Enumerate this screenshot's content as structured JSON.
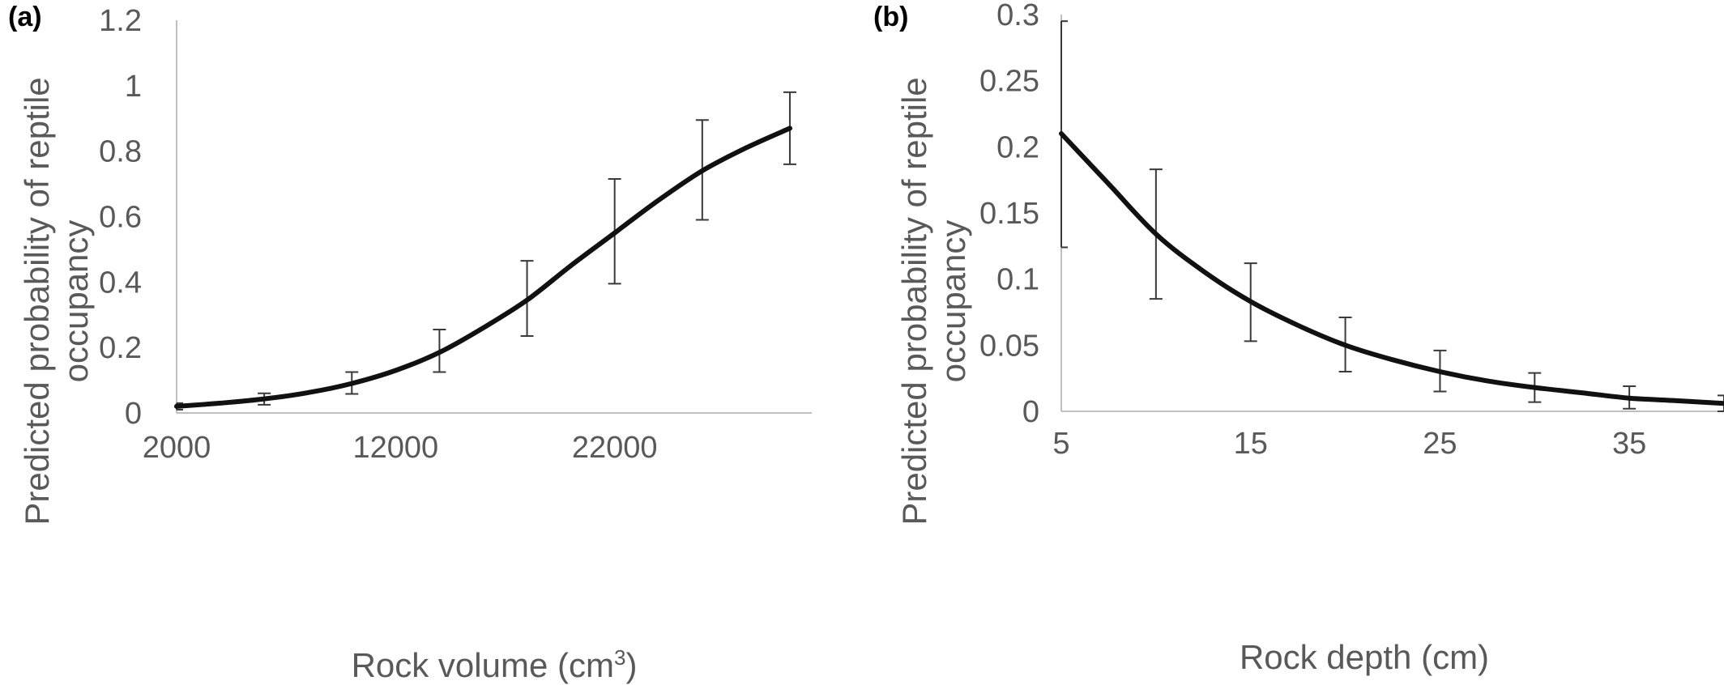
{
  "chart_data": [
    {
      "type": "line",
      "panel_label": "(a)",
      "xlabel": "Rock volume (cm",
      "xlabel_sup": "3",
      "xlabel_end": ")",
      "ylabel_line1": "Predicted probability of reptile",
      "ylabel_line2": "occupancy",
      "xlim": [
        2000,
        31000
      ],
      "ylim": [
        0,
        1.2
      ],
      "x_ticks": [
        2000,
        12000,
        22000
      ],
      "x_tick_labels": [
        "2000",
        "12000",
        "22000"
      ],
      "y_ticks": [
        0,
        0.2,
        0.4,
        0.6,
        0.8,
        1,
        1.2
      ],
      "y_tick_labels": [
        "0",
        "0.2",
        "0.4",
        "0.6",
        "0.8",
        "1",
        "1.2"
      ],
      "grid": false,
      "series": [
        {
          "x": [
            2000,
            4000,
            6000,
            8000,
            10000,
            12000,
            14000,
            16000,
            18000,
            20000,
            22000,
            24000,
            26000,
            28000,
            30000
          ],
          "y": [
            0.02,
            0.03,
            0.043,
            0.062,
            0.09,
            0.13,
            0.185,
            0.26,
            0.345,
            0.45,
            0.55,
            0.65,
            0.74,
            0.81,
            0.87
          ],
          "color": "#111111"
        }
      ],
      "error_bars": [
        {
          "x": 2000,
          "y": 0.02,
          "low": 0.01,
          "high": 0.03
        },
        {
          "x": 6000,
          "y": 0.043,
          "low": 0.025,
          "high": 0.06
        },
        {
          "x": 10000,
          "y": 0.09,
          "low": 0.058,
          "high": 0.125
        },
        {
          "x": 14000,
          "y": 0.185,
          "low": 0.125,
          "high": 0.255
        },
        {
          "x": 18000,
          "y": 0.345,
          "low": 0.235,
          "high": 0.465
        },
        {
          "x": 22000,
          "y": 0.55,
          "low": 0.395,
          "high": 0.715
        },
        {
          "x": 26000,
          "y": 0.74,
          "low": 0.59,
          "high": 0.895
        },
        {
          "x": 30000,
          "y": 0.87,
          "low": 0.76,
          "high": 0.98
        }
      ]
    },
    {
      "type": "line",
      "panel_label": "(b)",
      "xlabel": "Rock depth (cm)",
      "ylabel_line1": "Predicted probability of reptile",
      "ylabel_line2": "occupancy",
      "xlim": [
        5,
        40
      ],
      "ylim": [
        0,
        0.3
      ],
      "x_ticks": [
        5,
        15,
        25,
        35
      ],
      "x_tick_labels": [
        "5",
        "15",
        "25",
        "35"
      ],
      "y_ticks": [
        0,
        0.05,
        0.1,
        0.15,
        0.2,
        0.25,
        0.3
      ],
      "y_tick_labels": [
        "0",
        "0.05",
        "0.1",
        "0.15",
        "0.2",
        "0.25",
        "0.3"
      ],
      "grid": false,
      "series": [
        {
          "x": [
            5,
            7.5,
            10,
            12.5,
            15,
            17.5,
            20,
            22.5,
            25,
            27.5,
            30,
            32.5,
            35,
            37.5,
            40
          ],
          "y": [
            0.21,
            0.172,
            0.134,
            0.106,
            0.083,
            0.065,
            0.05,
            0.039,
            0.03,
            0.023,
            0.018,
            0.014,
            0.01,
            0.008,
            0.006
          ],
          "color": "#111111"
        }
      ],
      "error_bars": [
        {
          "x": 5,
          "y": 0.21,
          "low": 0.124,
          "high": 0.295
        },
        {
          "x": 10,
          "y": 0.134,
          "low": 0.085,
          "high": 0.183
        },
        {
          "x": 15,
          "y": 0.083,
          "low": 0.053,
          "high": 0.112
        },
        {
          "x": 20,
          "y": 0.05,
          "low": 0.03,
          "high": 0.071
        },
        {
          "x": 25,
          "y": 0.03,
          "low": 0.015,
          "high": 0.046
        },
        {
          "x": 30,
          "y": 0.018,
          "low": 0.007,
          "high": 0.029
        },
        {
          "x": 35,
          "y": 0.01,
          "low": 0.002,
          "high": 0.019
        },
        {
          "x": 40,
          "y": 0.006,
          "low": 0.0,
          "high": 0.012
        }
      ]
    }
  ]
}
